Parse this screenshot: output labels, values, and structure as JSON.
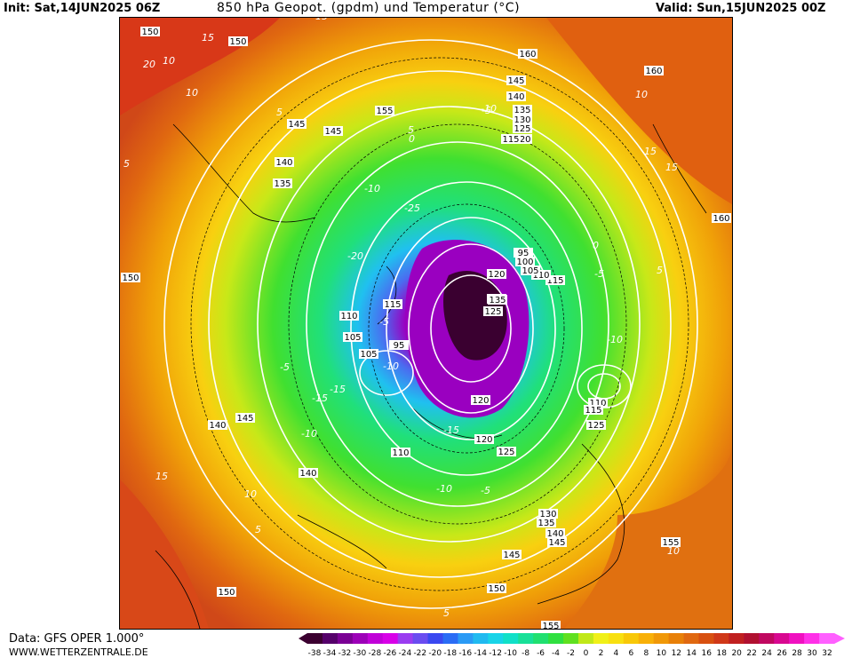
{
  "header": {
    "init": "Init: Sat,14JUN2025 06Z",
    "title": "850 hPa Geopot. (gpdm) und Temperatur (°C)",
    "valid": "Valid: Sun,15JUN2025 00Z"
  },
  "footer": {
    "data_source": "Data: GFS OPER 1.000°",
    "website": "WWW.WETTERZENTRALE.DE"
  },
  "colorbar": {
    "labels": [
      "-38",
      "-34",
      "-32",
      "-30",
      "-28",
      "-26",
      "-24",
      "-22",
      "-20",
      "-18",
      "-16",
      "-14",
      "-12",
      "-10",
      "-8",
      "-6",
      "-4",
      "-2",
      "0",
      "2",
      "4",
      "6",
      "8",
      "10",
      "12",
      "14",
      "16",
      "18",
      "20",
      "22",
      "24",
      "26",
      "28",
      "30",
      "32"
    ],
    "colors": [
      "#3b0030",
      "#55006a",
      "#7a0094",
      "#9c00b8",
      "#c000d8",
      "#d800e8",
      "#9a3cf0",
      "#6a4cf0",
      "#3a48f0",
      "#2a6cf5",
      "#2a9af5",
      "#20baf0",
      "#18d4e8",
      "#10e0c8",
      "#18e098",
      "#20e070",
      "#30e040",
      "#60e020",
      "#c0e818",
      "#f0f018",
      "#f8e010",
      "#f8c808",
      "#f8b008",
      "#f09808",
      "#e88008",
      "#e06810",
      "#d85010",
      "#d03818",
      "#c02020",
      "#b01030",
      "#c00860",
      "#d80890",
      "#f010c0",
      "#ff30e8",
      "#ff60ff"
    ]
  },
  "map": {
    "height_contour_labels": [
      "150",
      "160",
      "150",
      "145",
      "140",
      "135",
      "130",
      "125",
      "120",
      "155",
      "145",
      "145",
      "140",
      "135",
      "160",
      "160",
      "115",
      "110",
      "105",
      "100",
      "95",
      "130",
      "125",
      "120",
      "115",
      "110",
      "105",
      "95",
      "105",
      "110",
      "115",
      "125",
      "145",
      "140",
      "140",
      "120",
      "110",
      "120",
      "125",
      "130",
      "135",
      "140",
      "145",
      "150",
      "155",
      "155",
      "145",
      "150",
      "150",
      "115",
      "135"
    ],
    "temperature_contour_labels": [
      "20",
      "15",
      "10",
      "5",
      "5",
      "10",
      "15",
      "15",
      "10",
      "5",
      "0",
      "-5",
      "-10",
      "-10",
      "-15",
      "-20",
      "-25",
      "-15",
      "-10",
      "-5",
      "-5",
      "-10",
      "-15",
      "0",
      "-5",
      "-10",
      "5",
      "10",
      "15",
      "5",
      "10",
      "15",
      "-5",
      "-10",
      "5"
    ]
  }
}
